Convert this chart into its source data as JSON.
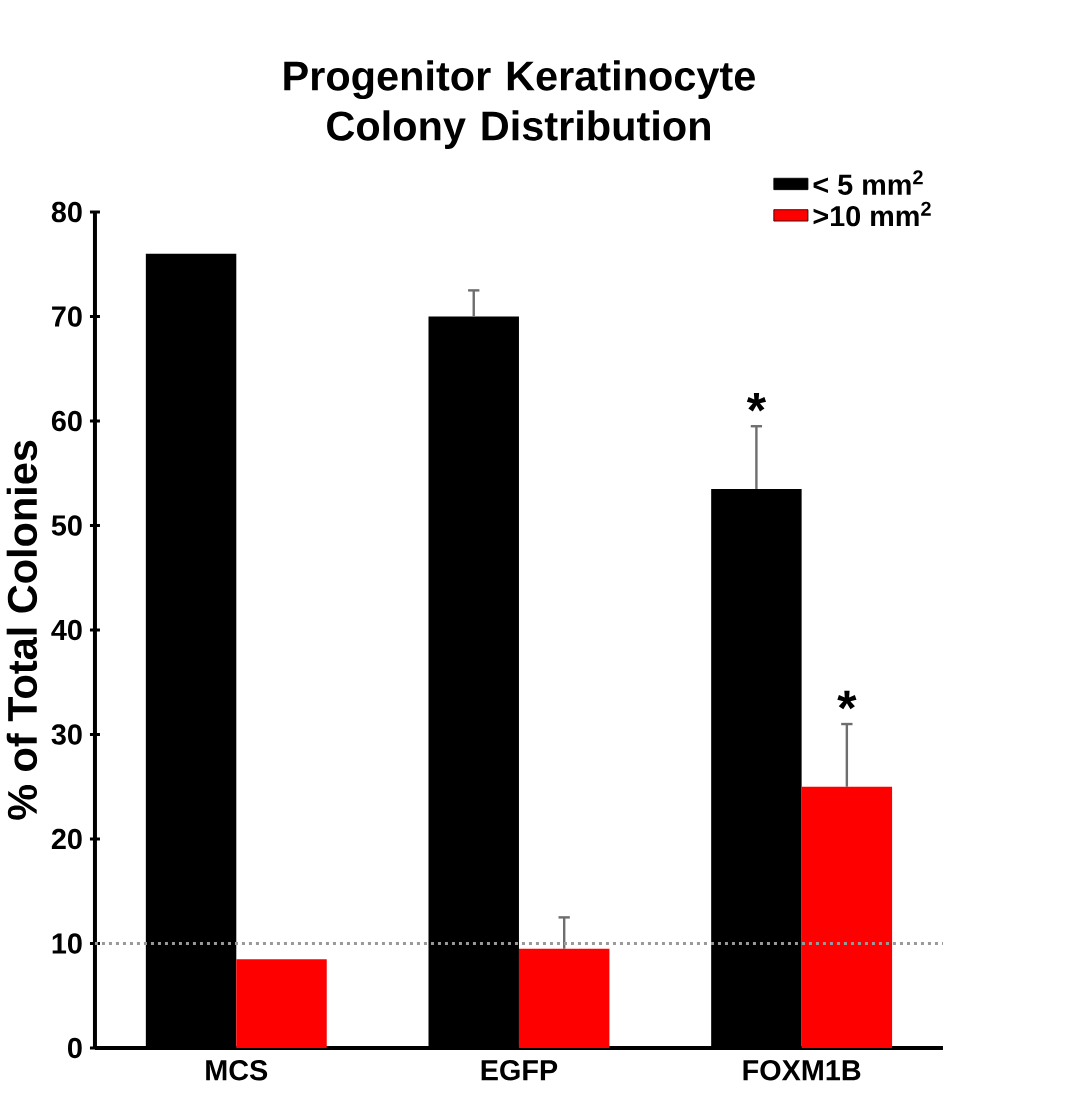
{
  "chart_data": {
    "type": "bar",
    "title": "Progenitor Keratinocyte Colony Distribution",
    "ylabel": "% of Total Colonies",
    "categories": [
      "MCS",
      "EGFP",
      "FOXM1B"
    ],
    "series": [
      {
        "name": "< 5 mm$^{2}$",
        "color": "#000000",
        "values": [
          76,
          70,
          53.5
        ],
        "errors": [
          null,
          2.5,
          6
        ]
      },
      {
        "name": ">10 mm$^{2}$",
        "color": "#ff0000",
        "values": [
          8.5,
          9.5,
          25
        ],
        "errors": [
          null,
          3,
          6
        ]
      }
    ],
    "ylim": [
      0,
      80
    ],
    "yticks": [
      0,
      10,
      20,
      30,
      40,
      50,
      60,
      70,
      80
    ],
    "legend": "top right",
    "ref_lines": [
      {
        "axis": "y",
        "value": 10,
        "color": "#999999",
        "line_style": "dotted"
      }
    ],
    "annotations": [
      {
        "text": "*",
        "x": "FOXM1B",
        "y": 53.5
      },
      {
        "text": "*",
        "x": "FOXM1B",
        "y": 25
      }
    ]
  }
}
